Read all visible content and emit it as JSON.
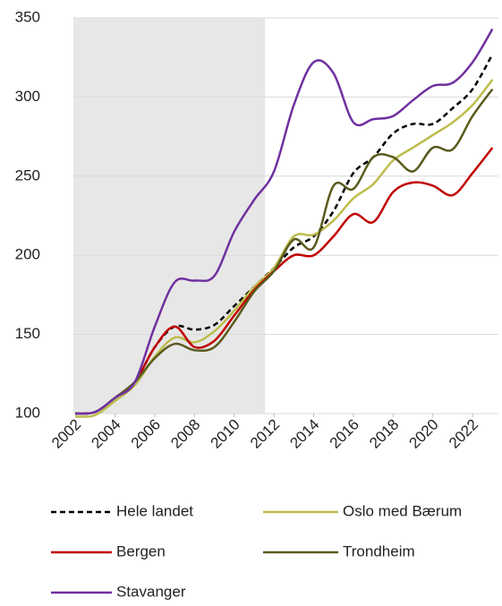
{
  "chart_data": {
    "type": "line",
    "x": [
      2002,
      2003,
      2004,
      2005,
      2006,
      2007,
      2008,
      2009,
      2010,
      2011,
      2012,
      2013,
      2014,
      2015,
      2016,
      2017,
      2018,
      2019,
      2020,
      2021,
      2022,
      2023
    ],
    "series": [
      {
        "name": "Hele landet",
        "color": "#000000",
        "dashed": true,
        "values": [
          100,
          101,
          110,
          120,
          142,
          155,
          153,
          156,
          168,
          180,
          192,
          205,
          212,
          228,
          252,
          262,
          277,
          283,
          283,
          293,
          305,
          327
        ]
      },
      {
        "name": "Oslo med Bærum",
        "color": "#bcbc4c",
        "values": [
          98,
          99,
          108,
          118,
          136,
          148,
          145,
          152,
          165,
          180,
          192,
          212,
          213,
          222,
          236,
          245,
          260,
          268,
          276,
          284,
          295,
          311
        ]
      },
      {
        "name": "Bergen",
        "color": "#c00000",
        "values": [
          100,
          101,
          110,
          120,
          142,
          155,
          142,
          146,
          162,
          178,
          190,
          200,
          200,
          212,
          226,
          221,
          240,
          246,
          244,
          238,
          252,
          268
        ]
      },
      {
        "name": "Trondheim",
        "color": "#5a5a1e",
        "values": [
          100,
          101,
          110,
          120,
          135,
          144,
          140,
          142,
          158,
          177,
          190,
          210,
          205,
          244,
          242,
          262,
          262,
          253,
          268,
          267,
          288,
          305
        ]
      },
      {
        "name": "Stavanger",
        "color": "#7030a0",
        "values": [
          100,
          101,
          110,
          120,
          155,
          183,
          184,
          187,
          215,
          235,
          253,
          295,
          322,
          315,
          284,
          286,
          288,
          298,
          307,
          309,
          322,
          343
        ]
      }
    ],
    "xlim": [
      2001.9,
      2023.3
    ],
    "xticks": [
      2002,
      2004,
      2006,
      2008,
      2010,
      2012,
      2014,
      2016,
      2018,
      2020,
      2022
    ],
    "ylim": [
      100,
      350
    ],
    "yticks": [
      100,
      150,
      200,
      250,
      300,
      350
    ],
    "grid": true,
    "shaded_range": [
      2001.9,
      2011.55
    ],
    "shade_color": "#e7e7e7",
    "legend": "bottom"
  }
}
